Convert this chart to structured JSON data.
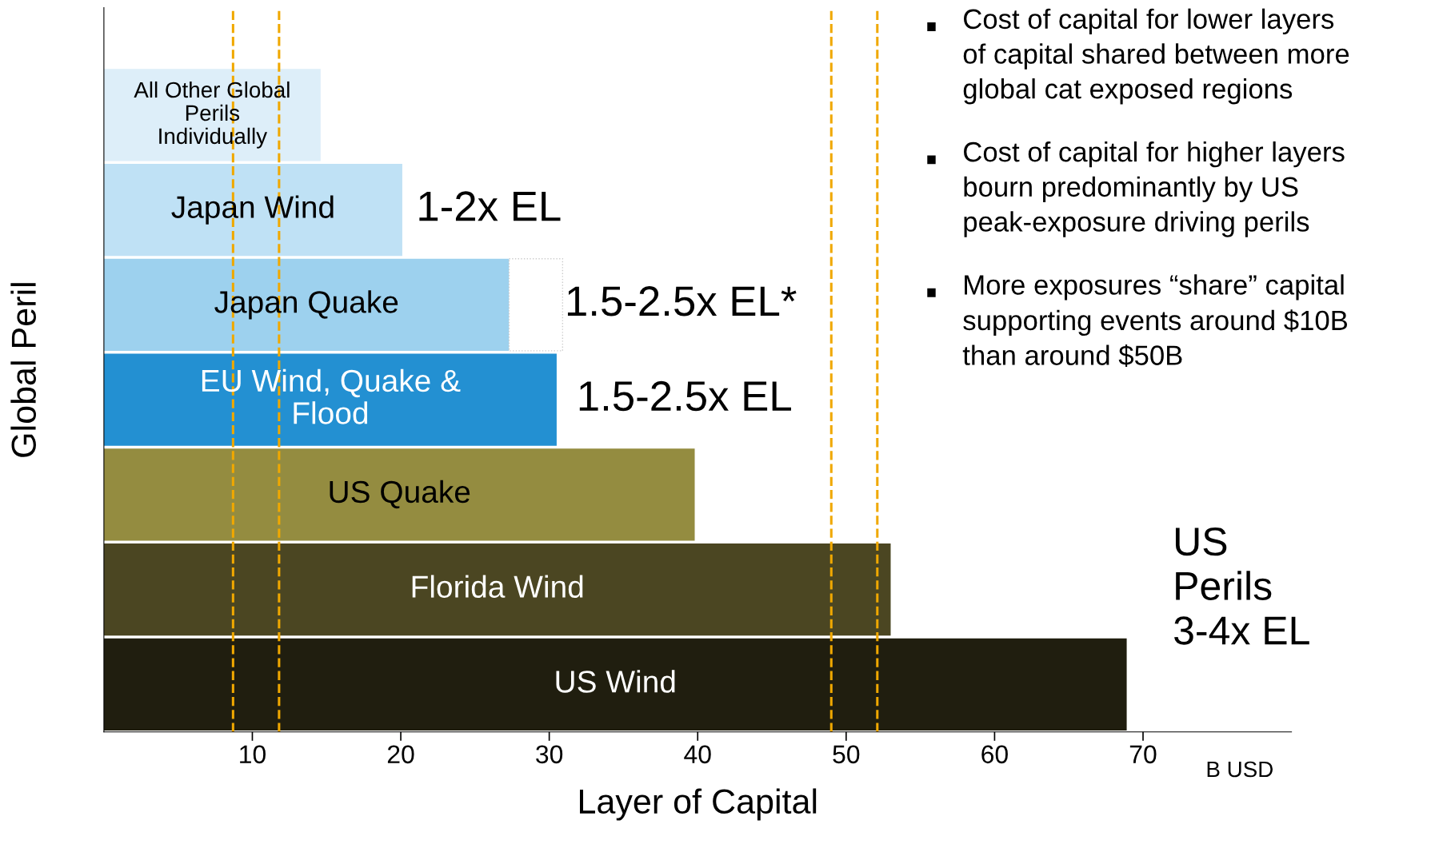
{
  "chart_data": {
    "type": "bar",
    "orientation": "horizontal",
    "stacked": true,
    "xlabel": "Layer of Capital",
    "ylabel": "Global Peril",
    "categories": [
      "All Other Global\nPerils\nIndividually",
      "Japan Wind",
      "Japan Quake",
      "EU Wind, Quake &\nFlood",
      "US Quake",
      "Florida Wind",
      "US Wind"
    ],
    "series": [
      {
        "colors": [
          "#ddeef9",
          "#bfe1f5",
          "#9dd1ee",
          "#2390d2",
          "#948c40",
          "#4b4622",
          "#201e0f"
        ],
        "values": [
          14.6,
          20.1,
          27.3,
          30.5,
          39.8,
          53.0,
          68.9
        ]
      },
      {
        "color": "#ffffff",
        "line_style": "dotted",
        "values": [
          null,
          null,
          3.6,
          null,
          null,
          null,
          null
        ]
      }
    ],
    "xlim": [
      0,
      80
    ],
    "xticks": [
      10,
      20,
      30,
      40,
      50,
      60,
      70
    ],
    "ref_lines": [
      {
        "axis": "x",
        "value": 8.7,
        "color": "#f0a800",
        "line_style": "dashed"
      },
      {
        "axis": "x",
        "value": 11.8,
        "color": "#f0a800",
        "line_style": "dashed"
      },
      {
        "axis": "x",
        "value": 49.0,
        "color": "#f0a800",
        "line_style": "dashed"
      },
      {
        "axis": "x",
        "value": 52.1,
        "color": "#f0a800",
        "line_style": "dashed"
      }
    ],
    "annotations": [
      "1-2x EL",
      "1.5-2.5x EL*",
      "1.5-2.5x EL",
      "US\nPerils\n3-4x EL",
      "Cost of capital for lower layers\nof capital shared between more\nglobal cat exposed regions",
      "Cost of capital for higher layers\nbourn predominantly by US\npeak-exposure driving perils",
      "More exposures “share” capital\nsupporting events around $10B\nthan around $50B",
      "B USD"
    ],
    "grid": false,
    "tick_labels": "x"
  }
}
